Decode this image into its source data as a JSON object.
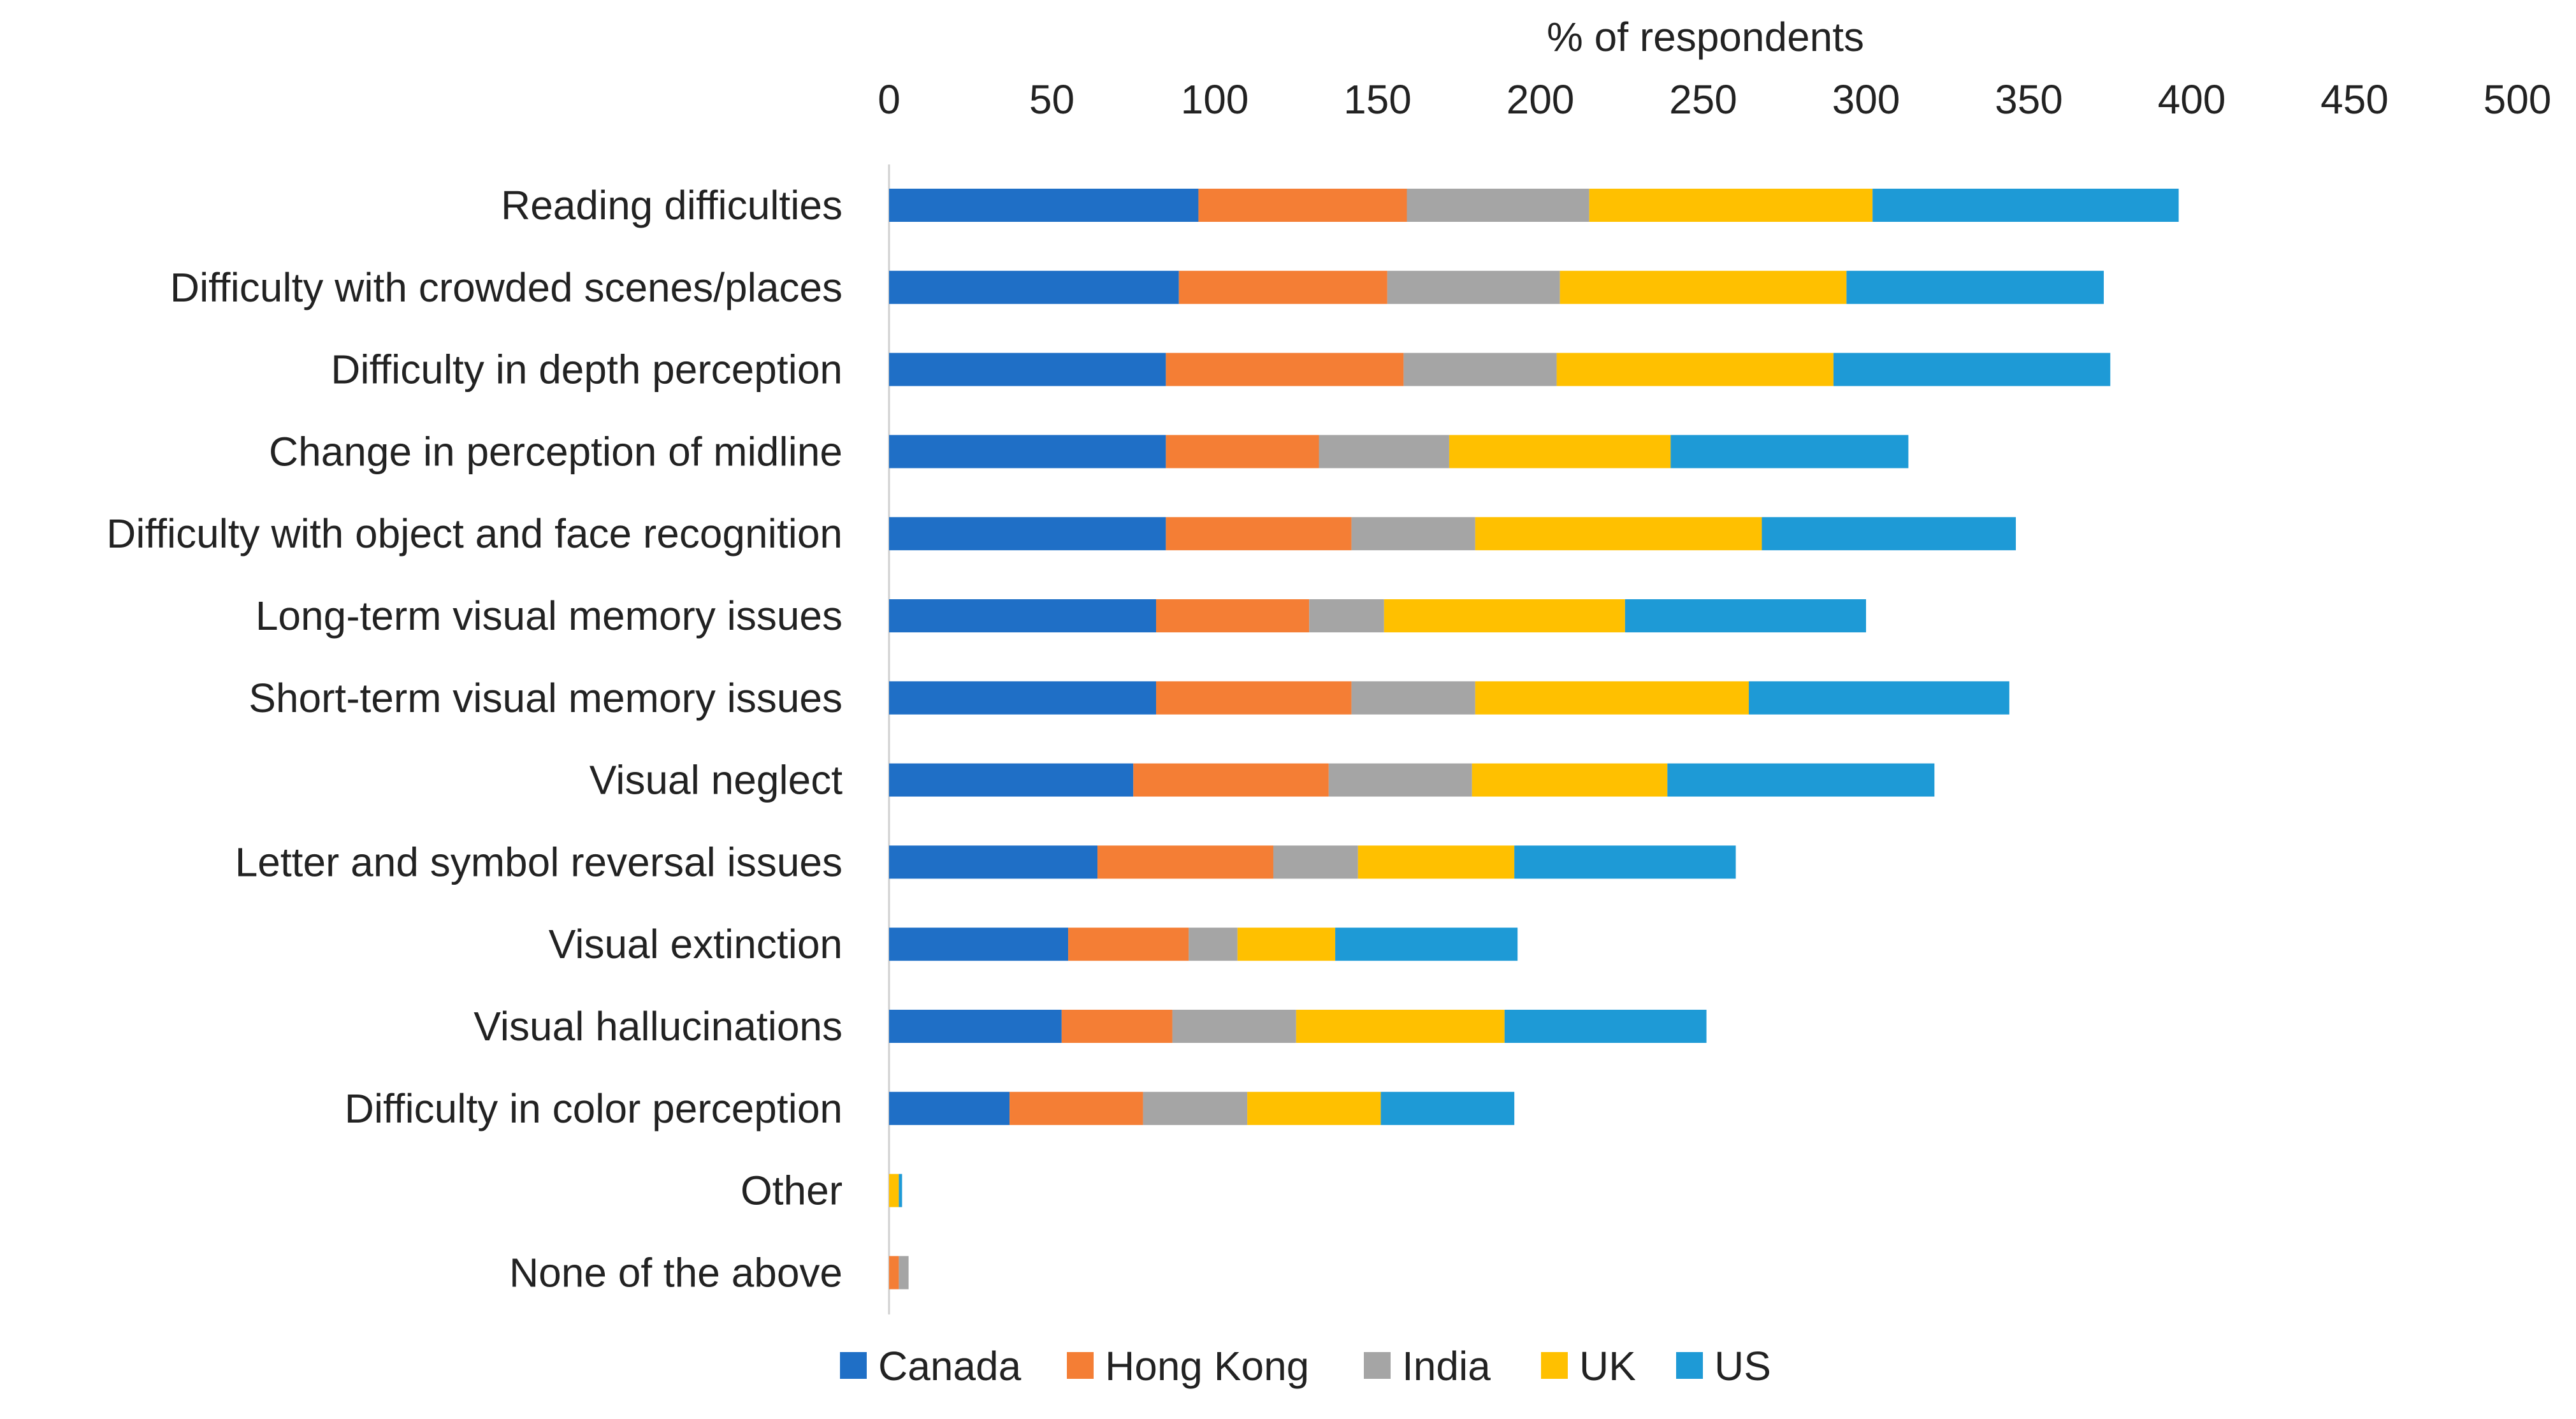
{
  "chart_data": {
    "type": "bar",
    "orientation": "horizontal",
    "stacked": true,
    "title": "",
    "xlabel": "% of respondents",
    "ylabel": "",
    "xlim": [
      0,
      500
    ],
    "x_ticks": [
      "0",
      "50",
      "100",
      "150",
      "200",
      "250",
      "300",
      "350",
      "400",
      "450",
      "500"
    ],
    "x_axis_position": "top",
    "grid": false,
    "legend_position": "bottom",
    "categories": [
      "Reading difficulties",
      "Difficulty with crowded scenes/places",
      "Difficulty in depth perception",
      "Change in perception of midline",
      "Difficulty with object and face recognition",
      "Long-term visual memory issues",
      "Short-term visual memory issues",
      "Visual neglect",
      "Letter and symbol reversal issues",
      "Visual extinction",
      "Visual hallucinations",
      "Difficulty in color perception",
      "Other",
      "None of the above"
    ],
    "series": [
      {
        "name": "Canada",
        "color": "#1F6FC6",
        "values": [
          95,
          89,
          85,
          85,
          85,
          82,
          82,
          75,
          64,
          55,
          53,
          37,
          0,
          0
        ]
      },
      {
        "name": "Hong Kong",
        "color": "#F47E35",
        "values": [
          64,
          64,
          73,
          47,
          57,
          47,
          60,
          60,
          54,
          37,
          34,
          41,
          0,
          3
        ]
      },
      {
        "name": "India",
        "color": "#A5A5A5",
        "values": [
          56,
          53,
          47,
          40,
          38,
          23,
          38,
          44,
          26,
          15,
          38,
          32,
          0,
          3
        ]
      },
      {
        "name": "UK",
        "color": "#FFC000",
        "values": [
          87,
          88,
          85,
          68,
          88,
          74,
          84,
          60,
          48,
          30,
          64,
          41,
          3,
          0
        ]
      },
      {
        "name": "US",
        "color": "#1E9AD6",
        "values": [
          94,
          79,
          85,
          73,
          78,
          74,
          80,
          82,
          68,
          56,
          62,
          41,
          1,
          0
        ]
      }
    ]
  }
}
